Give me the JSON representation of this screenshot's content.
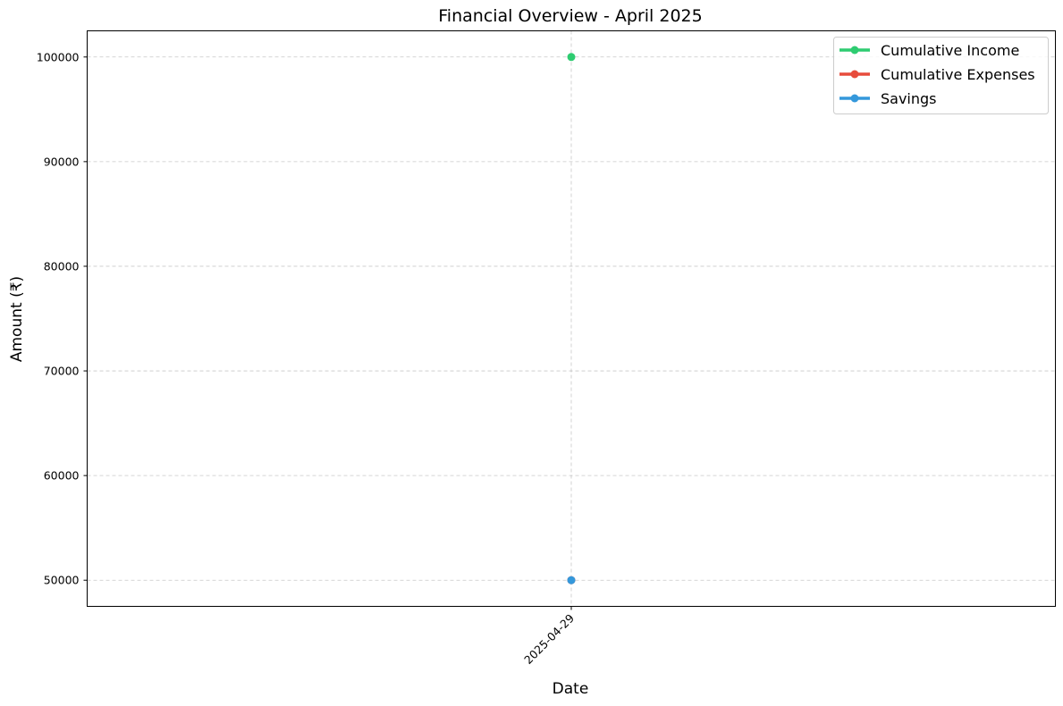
{
  "chart_data": {
    "type": "line",
    "title": "Financial Overview - April 2025",
    "xlabel": "Date",
    "ylabel": "Amount (₹)",
    "x": [
      "2025-04-29"
    ],
    "ylim": [
      47500,
      102500
    ],
    "yticks": [
      50000,
      60000,
      70000,
      80000,
      90000,
      100000
    ],
    "grid": true,
    "legend_position": "top-right",
    "series": [
      {
        "name": "Cumulative Income",
        "color": "#2ecc71",
        "values": [
          100000
        ]
      },
      {
        "name": "Cumulative Expenses",
        "color": "#e74c3c",
        "values": [
          50000
        ]
      },
      {
        "name": "Savings",
        "color": "#3498db",
        "values": [
          50000
        ]
      }
    ]
  }
}
